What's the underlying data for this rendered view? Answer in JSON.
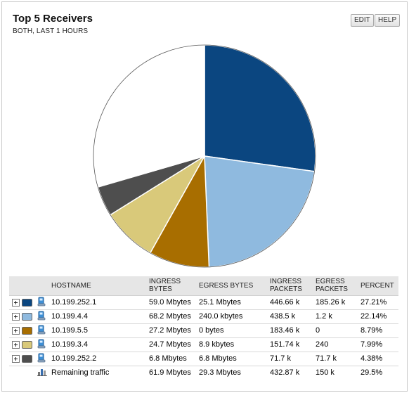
{
  "widget": {
    "title": "Top 5 Receivers",
    "subtitle": "BOTH, LAST 1 HOURS",
    "edit_label": "EDIT",
    "help_label": "HELP"
  },
  "chart_data": {
    "type": "pie",
    "categories": [
      "10.199.252.1",
      "10.199.4.4",
      "10.199.5.5",
      "10.199.3.4",
      "10.199.252.2",
      "Remaining traffic"
    ],
    "values": [
      27.21,
      22.14,
      8.79,
      7.99,
      4.38,
      29.5
    ],
    "colors": [
      "#0b4680",
      "#8fbadf",
      "#a86e00",
      "#d9c97a",
      "#4e4e4e",
      "#ffffff"
    ]
  },
  "table": {
    "headers": {
      "hostname": "HOSTNAME",
      "ingress_bytes": "INGRESS BYTES",
      "egress_bytes": "EGRESS BYTES",
      "ingress_packets": "INGRESS PACKETS",
      "egress_packets": "EGRESS PACKETS",
      "percent": "PERCENT"
    },
    "rows": [
      {
        "hostname": "10.199.252.1",
        "ingress_bytes": "59.0 Mbytes",
        "egress_bytes": "25.1 Mbytes",
        "ingress_packets": "446.66 k",
        "egress_packets": "185.26 k",
        "percent": "27.21%",
        "color": "#0b4680"
      },
      {
        "hostname": "10.199.4.4",
        "ingress_bytes": "68.2 Mbytes",
        "egress_bytes": "240.0 kbytes",
        "ingress_packets": "438.5 k",
        "egress_packets": "1.2 k",
        "percent": "22.14%",
        "color": "#8fbadf"
      },
      {
        "hostname": "10.199.5.5",
        "ingress_bytes": "27.2 Mbytes",
        "egress_bytes": "0 bytes",
        "ingress_packets": "183.46 k",
        "egress_packets": "0",
        "percent": "8.79%",
        "color": "#a86e00"
      },
      {
        "hostname": "10.199.3.4",
        "ingress_bytes": "24.7 Mbytes",
        "egress_bytes": "8.9 kbytes",
        "ingress_packets": "151.74 k",
        "egress_packets": "240",
        "percent": "7.99%",
        "color": "#d9c97a"
      },
      {
        "hostname": "10.199.252.2",
        "ingress_bytes": "6.8 Mbytes",
        "egress_bytes": "6.8 Mbytes",
        "ingress_packets": "71.7 k",
        "egress_packets": "71.7 k",
        "percent": "4.38%",
        "color": "#4e4e4e"
      }
    ],
    "remaining": {
      "hostname": "Remaining traffic",
      "ingress_bytes": "61.9 Mbytes",
      "egress_bytes": "29.3 Mbytes",
      "ingress_packets": "432.87 k",
      "egress_packets": "150 k",
      "percent": "29.5%"
    }
  },
  "icons": {
    "expand": "expand-plus-icon",
    "host": "computer-host-icon",
    "remaining": "bar-chart-icon"
  }
}
